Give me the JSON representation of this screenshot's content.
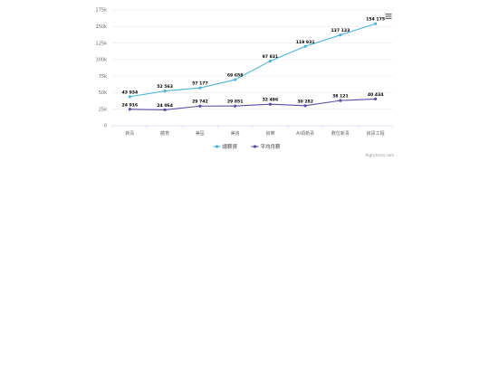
{
  "chart_data": {
    "type": "line",
    "title": "",
    "xlabel": "",
    "ylabel": "",
    "categories": [
      "新青",
      "體育",
      "美區",
      "美洛",
      "資樂",
      "AI領新青",
      "數位新青",
      "資訊工程"
    ],
    "series": [
      {
        "name": "總薪資",
        "color": "#4ab4dc",
        "values": [
          43934,
          52563,
          57177,
          69658,
          97831,
          119931,
          137133,
          154175
        ],
        "labels": [
          "43 934",
          "52 563",
          "57 177",
          "69 658",
          "97 831",
          "119 931",
          "137 133",
          "154 175"
        ]
      },
      {
        "name": "平均月薪",
        "color": "#5b4ea3",
        "values": [
          24916,
          24064,
          29742,
          29851,
          32496,
          30282,
          38121,
          40434
        ],
        "labels": [
          "24 916",
          "24 064",
          "29 742",
          "29 851",
          "32 496",
          "30 282",
          "38 121",
          "40 434"
        ]
      }
    ],
    "y_ticks": [
      {
        "value": 0,
        "label": "0"
      },
      {
        "value": 25000,
        "label": "25k"
      },
      {
        "value": 50000,
        "label": "50k"
      },
      {
        "value": 75000,
        "label": "75k"
      },
      {
        "value": 100000,
        "label": "100k"
      },
      {
        "value": 125000,
        "label": "125k"
      },
      {
        "value": 150000,
        "label": "150k"
      },
      {
        "value": 175000,
        "label": "175k"
      }
    ],
    "ylim": [
      0,
      175000
    ],
    "grid": true,
    "legend_position": "bottom-center",
    "credits": "Highcharts.com",
    "menu_icon": "hamburger-menu-icon"
  }
}
